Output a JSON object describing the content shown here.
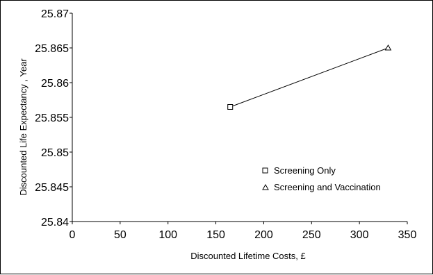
{
  "chart_data": {
    "type": "line",
    "title": "",
    "xlabel": "Discounted Lifetime Costs, £",
    "ylabel": "Discounted Life Expectancy , Year",
    "xlim": [
      0,
      350
    ],
    "ylim": [
      25.84,
      25.87
    ],
    "x_ticks": [
      "0",
      "50",
      "100",
      "150",
      "200",
      "250",
      "300",
      "350"
    ],
    "y_ticks": [
      "25.84",
      "25.845",
      "25.85",
      "25.855",
      "25.86",
      "25.865",
      "25.87"
    ],
    "grid": false,
    "legend_position": "bottom-right",
    "line_color": "#000000",
    "series": [
      {
        "name": "Screening Only",
        "marker": "square",
        "x": 165,
        "y": 25.8565
      },
      {
        "name": "Screening and Vaccination",
        "marker": "triangle",
        "x": 330,
        "y": 25.865
      }
    ]
  }
}
